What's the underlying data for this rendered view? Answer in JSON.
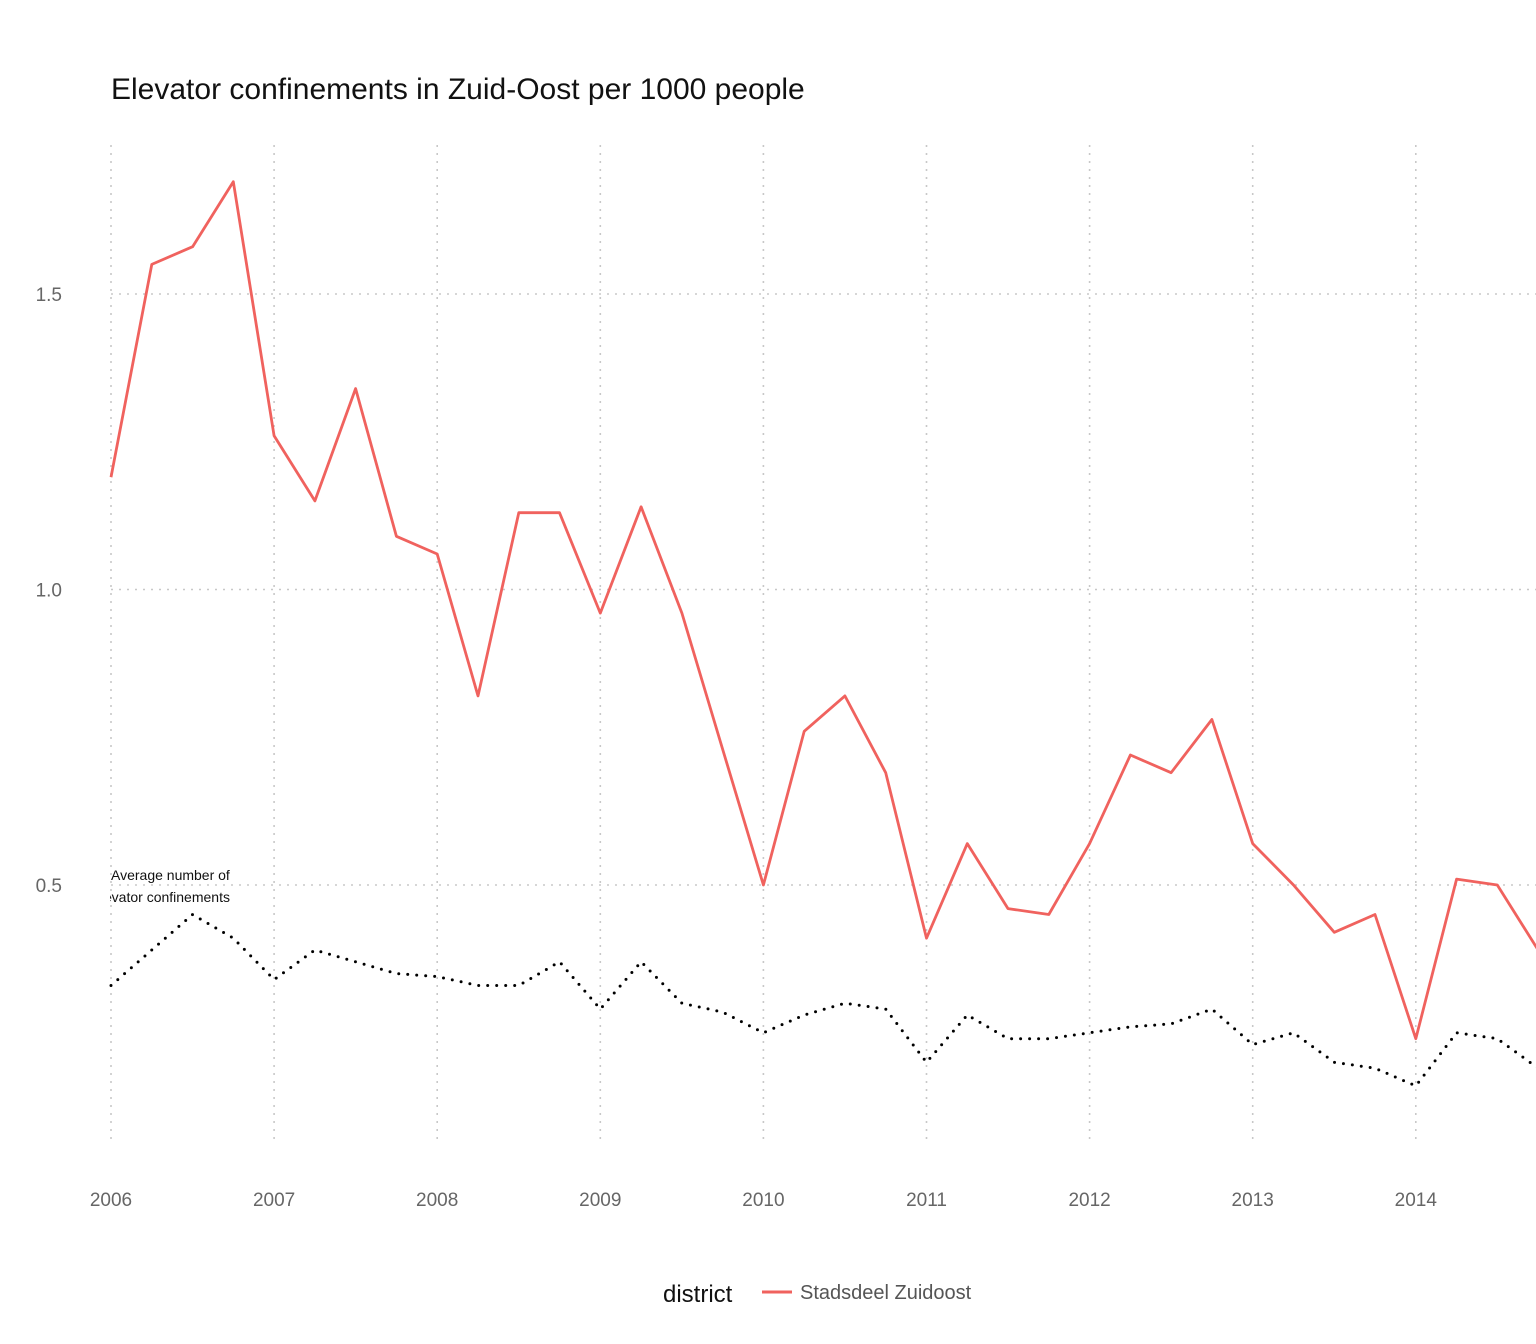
{
  "chart_data": {
    "type": "line",
    "title": "Elevator confinements in Zuid-Oost per 1000 people",
    "xlabel": "",
    "ylabel": "",
    "x_ticks": [
      "2006",
      "2007",
      "2008",
      "2009",
      "2010",
      "2011",
      "2012",
      "2013",
      "2014"
    ],
    "y_ticks": [
      "0.5",
      "1.0",
      "1.5"
    ],
    "xlim": [
      "2006-01",
      "2014-10"
    ],
    "ylim": [
      0.07,
      1.75
    ],
    "grid": true,
    "x": [
      "2006-01",
      "2006-04",
      "2006-07",
      "2006-10",
      "2007-01",
      "2007-04",
      "2007-07",
      "2007-10",
      "2008-01",
      "2008-04",
      "2008-07",
      "2008-10",
      "2009-01",
      "2009-04",
      "2009-07",
      "2009-10",
      "2010-01",
      "2010-04",
      "2010-07",
      "2010-10",
      "2011-01",
      "2011-04",
      "2011-07",
      "2011-10",
      "2012-01",
      "2012-04",
      "2012-07",
      "2012-10",
      "2013-01",
      "2013-04",
      "2013-07",
      "2013-10",
      "2014-01",
      "2014-04",
      "2014-07",
      "2014-10"
    ],
    "series": [
      {
        "name": "Stadsdeel Zuidoost",
        "color": "#F0625E",
        "line_style": "solid",
        "values": [
          1.19,
          1.55,
          1.58,
          1.69,
          1.26,
          1.15,
          1.34,
          1.09,
          1.06,
          0.82,
          1.13,
          1.13,
          0.96,
          1.14,
          0.96,
          0.73,
          0.5,
          0.76,
          0.82,
          0.69,
          0.41,
          0.57,
          0.46,
          0.45,
          0.57,
          0.72,
          0.69,
          0.78,
          0.57,
          0.5,
          0.42,
          0.45,
          0.24,
          0.51,
          0.5,
          0.39
        ]
      },
      {
        "name": "",
        "color": "#000000",
        "line_style": "dotted",
        "values": [
          0.33,
          0.39,
          0.45,
          0.41,
          0.34,
          0.39,
          0.37,
          0.35,
          0.345,
          0.33,
          0.33,
          0.37,
          0.29,
          0.37,
          0.3,
          0.285,
          0.25,
          0.28,
          0.3,
          0.29,
          0.2,
          0.28,
          0.24,
          0.24,
          0.25,
          0.26,
          0.265,
          0.29,
          0.23,
          0.25,
          0.2,
          0.19,
          0.16,
          0.25,
          0.24,
          0.19
        ]
      }
    ],
    "annotation": {
      "line1": "Average number of",
      "line2": "elevator confinements"
    },
    "legend": {
      "title": "district",
      "position": "bottom",
      "entries": [
        {
          "label": "Stadsdeel Zuidoost",
          "color": "#F0625E"
        }
      ]
    }
  }
}
